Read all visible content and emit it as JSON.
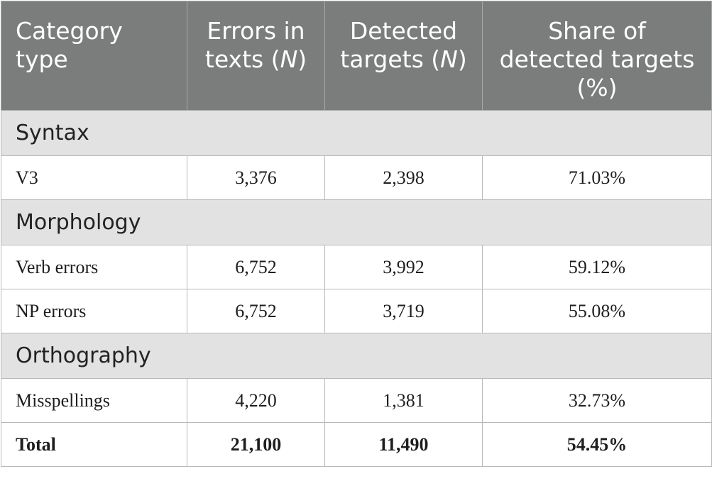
{
  "header": {
    "col1_line1": "Category",
    "col1_line2": "type",
    "col2_line1": "Errors in",
    "col2_line2_text": "texts (",
    "col2_line2_var": "N",
    "col2_line2_close": ")",
    "col3_line1": "Detected",
    "col3_line2_text": "targets (",
    "col3_line2_var": "N",
    "col3_line2_close": ")",
    "col4_line1": "Share of",
    "col4_line2": "detected targets",
    "col4_line3": "(%)"
  },
  "sections": [
    {
      "title": "Syntax",
      "rows": [
        {
          "label": "V3",
          "errors": "3,376",
          "detected": "2,398",
          "share": "71.03%"
        }
      ]
    },
    {
      "title": "Morphology",
      "rows": [
        {
          "label": "Verb errors",
          "errors": "6,752",
          "detected": "3,992",
          "share": "59.12%"
        },
        {
          "label": "NP errors",
          "errors": "6,752",
          "detected": "3,719",
          "share": "55.08%"
        }
      ]
    },
    {
      "title": "Orthography",
      "rows": [
        {
          "label": "Misspellings",
          "errors": "4,220",
          "detected": "1,381",
          "share": "32.73%"
        }
      ]
    }
  ],
  "total": {
    "label": "Total",
    "errors": "21,100",
    "detected": "11,490",
    "share": "54.45%"
  }
}
